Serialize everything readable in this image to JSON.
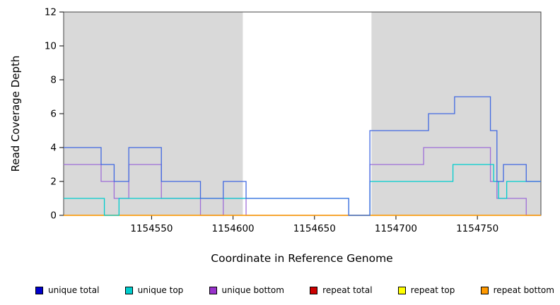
{
  "chart_data": {
    "type": "line",
    "style": "step",
    "title": "",
    "xlabel": "Coordinate in Reference Genome",
    "ylabel": "Read Coverage Depth",
    "xlim": [
      1154496,
      1154789
    ],
    "ylim": [
      0,
      12
    ],
    "x_ticks": [
      1154550,
      1154600,
      1154650,
      1154700,
      1154750
    ],
    "y_ticks": [
      0,
      2,
      4,
      6,
      8,
      10,
      12
    ],
    "grid": false,
    "background_color": "#ffffff",
    "shaded_regions": [
      {
        "x0": 1154496,
        "x1": 1154606,
        "color": "#d9d9d9"
      },
      {
        "x0": 1154685,
        "x1": 1154789,
        "color": "#d9d9d9"
      }
    ],
    "series": [
      {
        "name": "unique bottom",
        "color": "#9f6fd8",
        "steps": [
          [
            1154496,
            3
          ],
          [
            1154519,
            2
          ],
          [
            1154527,
            1
          ],
          [
            1154536,
            3
          ],
          [
            1154556,
            1
          ],
          [
            1154580,
            0
          ],
          [
            1154594,
            1
          ],
          [
            1154608,
            0
          ],
          [
            1154684,
            3
          ],
          [
            1154717,
            4
          ],
          [
            1154758,
            2
          ],
          [
            1154762,
            1
          ],
          [
            1154780,
            0
          ]
        ]
      },
      {
        "name": "repeat total",
        "color": "#cd0000",
        "steps": [
          [
            1154496,
            0
          ]
        ]
      },
      {
        "name": "repeat top",
        "color": "#ffff00",
        "steps": [
          [
            1154496,
            0
          ]
        ]
      },
      {
        "name": "repeat bottom",
        "color": "#ff9900",
        "steps": [
          [
            1154496,
            0
          ]
        ]
      },
      {
        "name": "unique top",
        "color": "#00cdcd",
        "steps": [
          [
            1154496,
            1
          ],
          [
            1154521,
            0
          ],
          [
            1154530,
            1
          ],
          [
            1154671,
            0
          ],
          [
            1154684,
            2
          ],
          [
            1154735,
            3
          ],
          [
            1154760,
            2
          ],
          [
            1154763,
            1
          ],
          [
            1154768,
            2
          ]
        ]
      },
      {
        "name": "unique total",
        "color": "#4169e1",
        "steps": [
          [
            1154496,
            4
          ],
          [
            1154519,
            3
          ],
          [
            1154527,
            2
          ],
          [
            1154536,
            4
          ],
          [
            1154556,
            2
          ],
          [
            1154580,
            1
          ],
          [
            1154594,
            2
          ],
          [
            1154608,
            1
          ],
          [
            1154671,
            0
          ],
          [
            1154684,
            5
          ],
          [
            1154720,
            6
          ],
          [
            1154736,
            7
          ],
          [
            1154758,
            5
          ],
          [
            1154762,
            2
          ],
          [
            1154766,
            3
          ],
          [
            1154780,
            2
          ]
        ]
      }
    ],
    "legend_position": "bottom",
    "legend": [
      {
        "label": "unique total",
        "color": "#0000cd"
      },
      {
        "label": "unique top",
        "color": "#00cdcd"
      },
      {
        "label": "unique bottom",
        "color": "#9932cc"
      },
      {
        "label": "repeat total",
        "color": "#cd0000"
      },
      {
        "label": "repeat top",
        "color": "#ffff00"
      },
      {
        "label": "repeat bottom",
        "color": "#ff9900"
      }
    ]
  }
}
